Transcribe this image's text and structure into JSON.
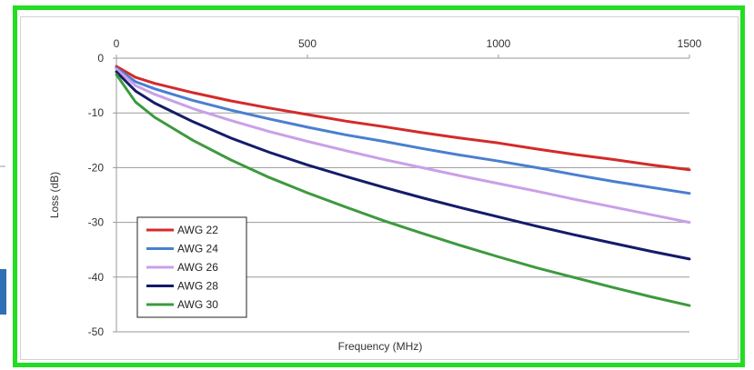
{
  "chart_data": {
    "type": "line",
    "xlabel": "Frequency (MHz)",
    "ylabel": "Loss (dB)",
    "xlim": [
      0,
      1500
    ],
    "ylim": [
      -50,
      0
    ],
    "x_ticks": [
      0,
      500,
      1000,
      1500
    ],
    "y_ticks": [
      0,
      -10,
      -20,
      -30,
      -40,
      -50
    ],
    "x_axis_position": "top",
    "grid": "horizontal",
    "legend_position": "bottom-left",
    "series": [
      {
        "name": "AWG 22",
        "color": "#d42a2a",
        "x": [
          0,
          50,
          100,
          200,
          300,
          400,
          500,
          600,
          700,
          800,
          900,
          1000,
          1100,
          1200,
          1300,
          1400,
          1500
        ],
        "y": [
          -1.5,
          -3.5,
          -4.6,
          -6.3,
          -7.8,
          -9.1,
          -10.3,
          -11.5,
          -12.5,
          -13.6,
          -14.6,
          -15.5,
          -16.6,
          -17.6,
          -18.5,
          -19.5,
          -20.4
        ]
      },
      {
        "name": "AWG 24",
        "color": "#4a7fd0",
        "x": [
          0,
          50,
          100,
          200,
          300,
          400,
          500,
          600,
          700,
          800,
          900,
          1000,
          1100,
          1200,
          1300,
          1400,
          1500
        ],
        "y": [
          -1.8,
          -4.3,
          -5.6,
          -7.7,
          -9.5,
          -11.1,
          -12.6,
          -14.0,
          -15.2,
          -16.5,
          -17.7,
          -18.8,
          -20.0,
          -21.3,
          -22.5,
          -23.6,
          -24.7
        ]
      },
      {
        "name": "AWG 26",
        "color": "#c9a0e8",
        "x": [
          0,
          50,
          100,
          200,
          300,
          400,
          500,
          600,
          700,
          800,
          900,
          1000,
          1100,
          1200,
          1300,
          1400,
          1500
        ],
        "y": [
          -2.0,
          -5.0,
          -6.6,
          -9.2,
          -11.4,
          -13.4,
          -15.2,
          -16.9,
          -18.5,
          -20.0,
          -21.5,
          -22.9,
          -24.3,
          -25.8,
          -27.2,
          -28.6,
          -30.0
        ]
      },
      {
        "name": "AWG 28",
        "color": "#141b6a",
        "x": [
          0,
          50,
          100,
          200,
          300,
          400,
          500,
          600,
          700,
          800,
          900,
          1000,
          1100,
          1200,
          1300,
          1400,
          1500
        ],
        "y": [
          -2.5,
          -6.0,
          -8.2,
          -11.6,
          -14.6,
          -17.2,
          -19.5,
          -21.6,
          -23.6,
          -25.5,
          -27.3,
          -29.0,
          -30.7,
          -32.3,
          -33.8,
          -35.3,
          -36.7
        ]
      },
      {
        "name": "AWG 30",
        "color": "#3d9a3d",
        "x": [
          0,
          50,
          100,
          200,
          300,
          400,
          500,
          600,
          700,
          800,
          900,
          1000,
          1100,
          1200,
          1300,
          1400,
          1500
        ],
        "y": [
          -3.0,
          -8.0,
          -10.8,
          -15.0,
          -18.6,
          -21.8,
          -24.6,
          -27.2,
          -29.7,
          -32.0,
          -34.2,
          -36.3,
          -38.3,
          -40.1,
          -41.9,
          -43.6,
          -45.2
        ]
      }
    ]
  }
}
